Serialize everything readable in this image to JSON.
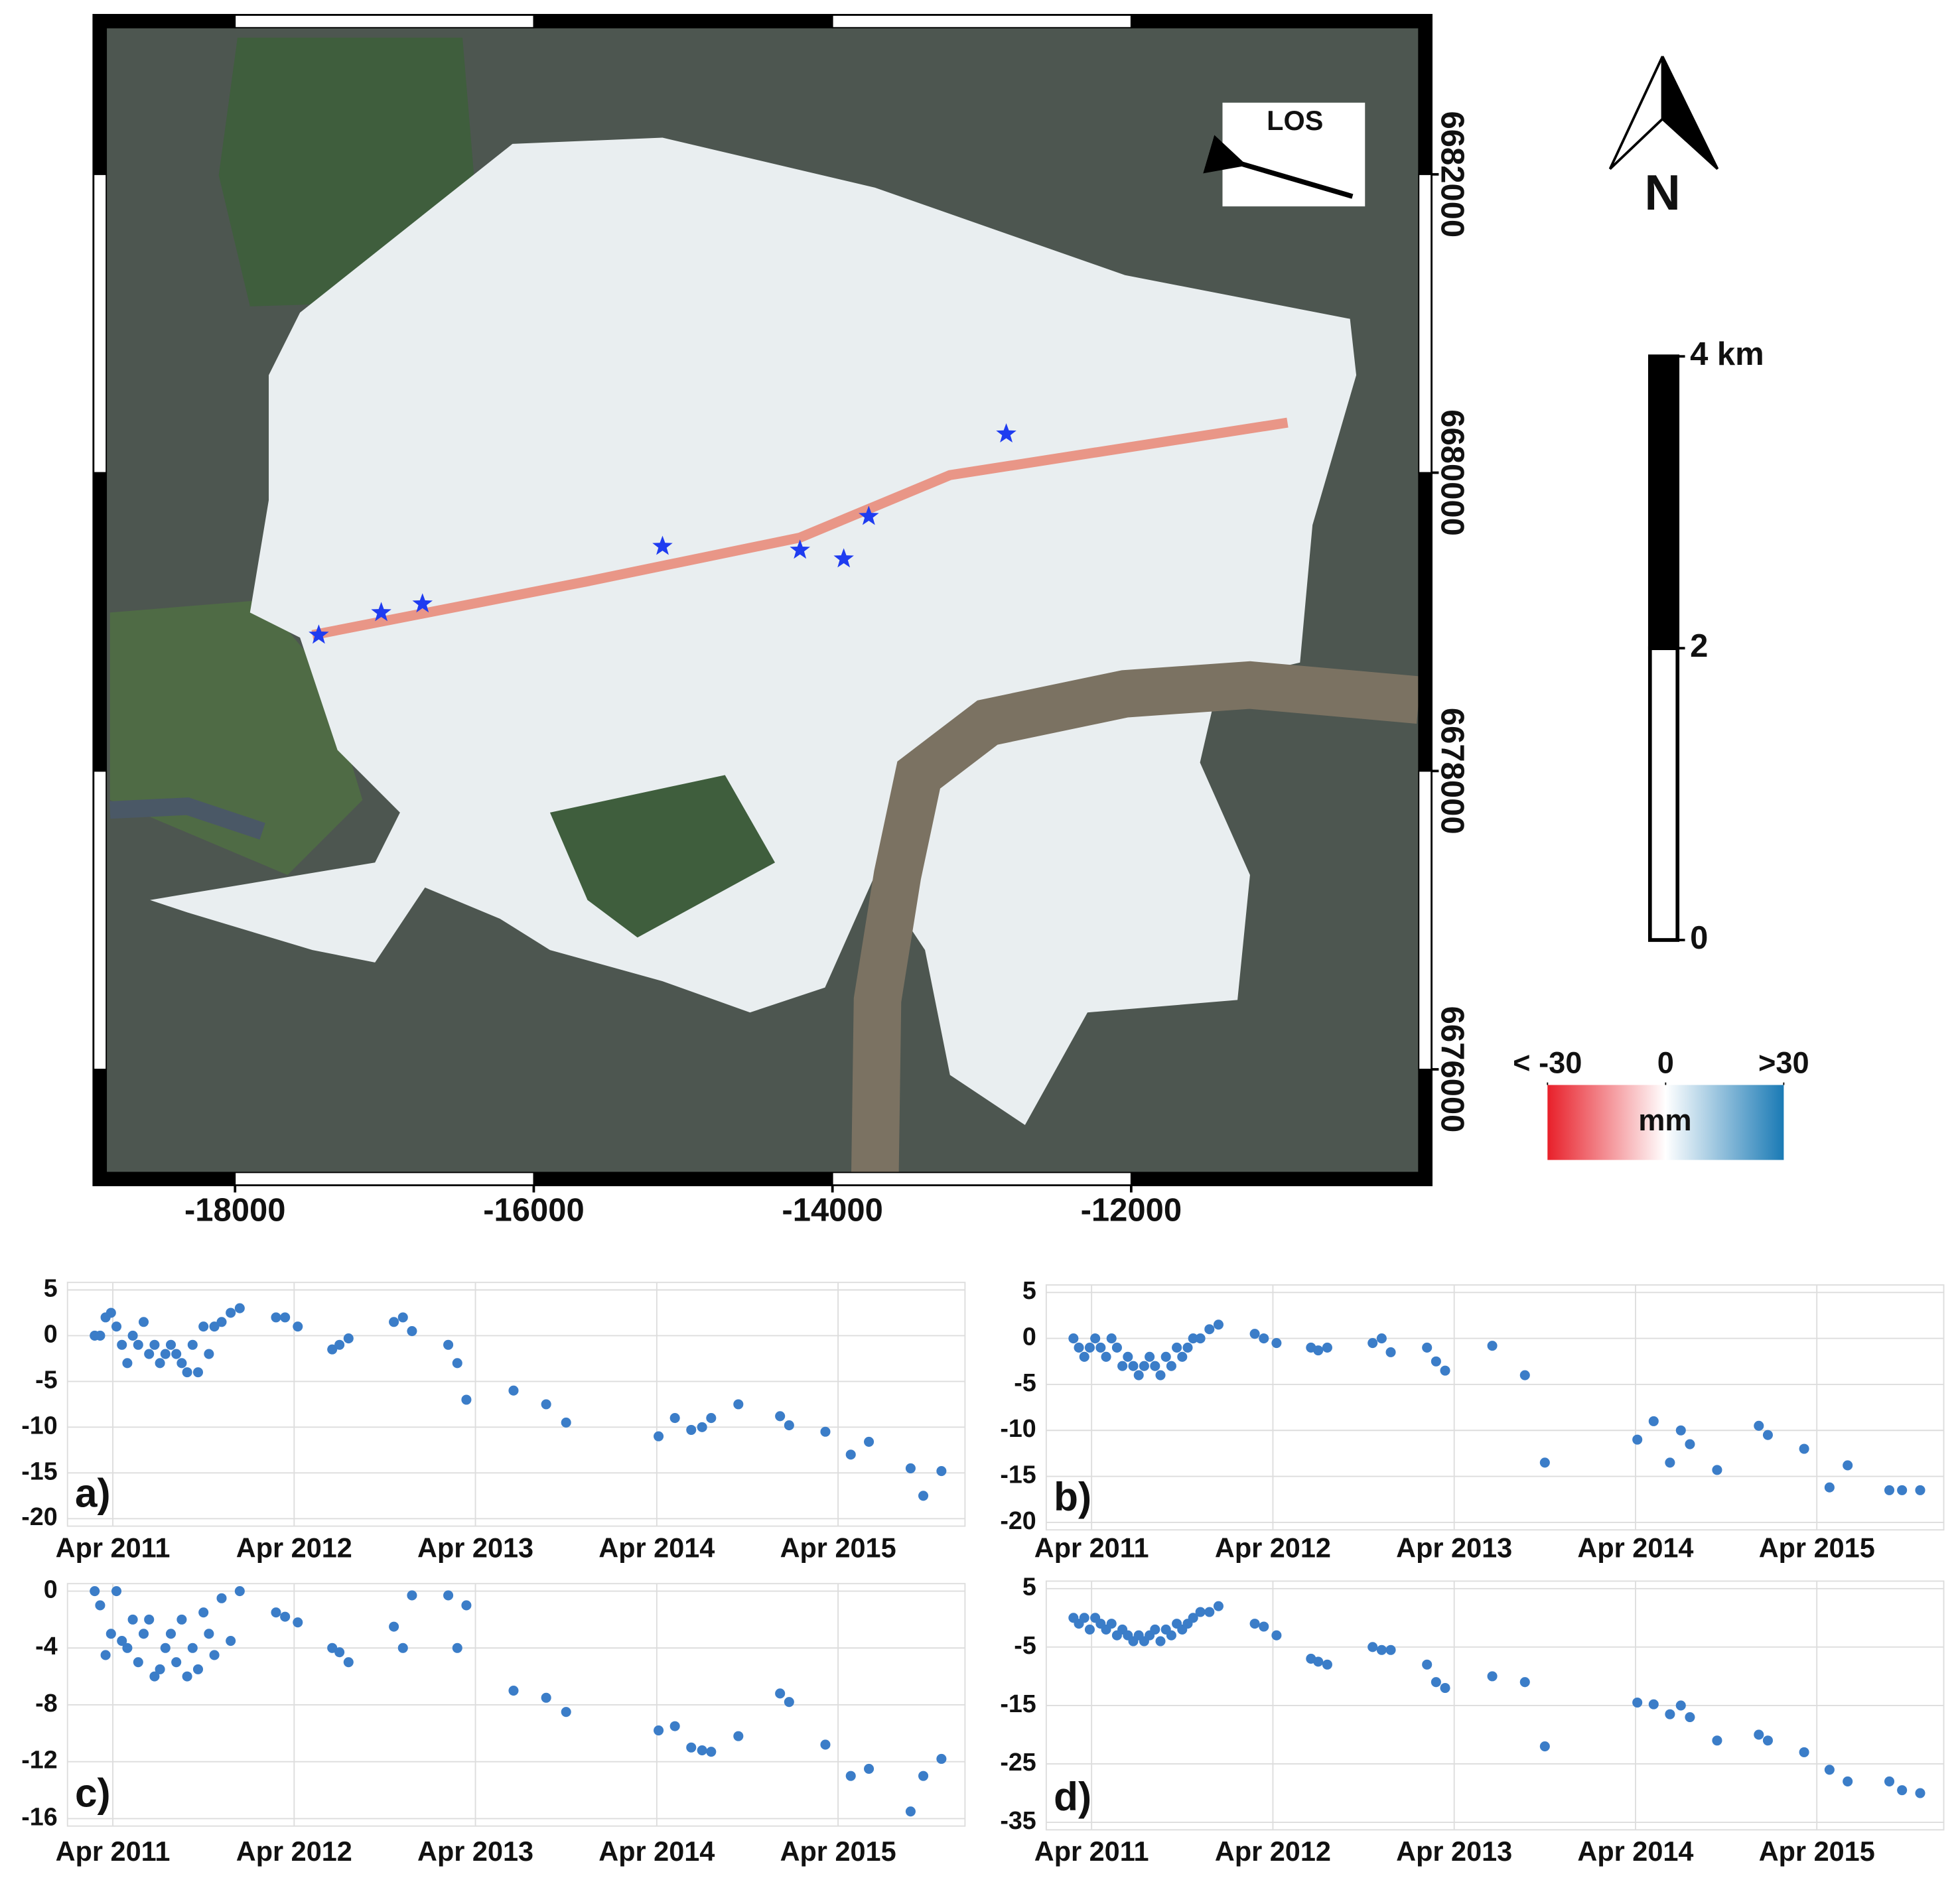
{
  "chart_data": [
    {
      "type": "map",
      "xlim": [
        -18946,
        -9991
      ],
      "ylim": [
        6675225,
        6683067
      ],
      "xticks": [
        -18000,
        -16000,
        -14000,
        -12000
      ],
      "yticks": [
        6676000,
        6678000,
        6680000,
        6682000
      ],
      "direction_label": "LOS",
      "north_label": "N",
      "scale_bar": {
        "lim": [
          0,
          4
        ],
        "ticks": [
          0,
          2,
          {
            "value": 4,
            "label": "4 km"
          }
        ]
      },
      "colorbar": {
        "lim": [
          -30,
          30
        ],
        "ticks": [
          {
            "value": -30,
            "label": "< -30"
          },
          0,
          {
            "value": 30,
            "label": ">30"
          }
        ],
        "label": "mm",
        "colors": [
          "#e8202a",
          "#ffffff",
          "#1a7ab5"
        ]
      }
    },
    {
      "type": "scatter",
      "label": "a)",
      "color": "#3b7dc8",
      "xlim": [
        2011.0,
        2015.95
      ],
      "ylim": [
        -20,
        5
      ],
      "yticks": [
        5,
        0,
        -5,
        -10,
        -15,
        -20
      ],
      "xticks": [
        {
          "value": 2011.25,
          "label": "Apr 2011"
        },
        {
          "value": 2012.25,
          "label": "Apr 2012"
        },
        {
          "value": 2013.25,
          "label": "Apr 2013"
        },
        {
          "value": 2014.25,
          "label": "Apr 2014"
        },
        {
          "value": 2015.25,
          "label": "Apr 2015"
        }
      ],
      "x": [
        2011.15,
        2011.18,
        2011.21,
        2011.24,
        2011.27,
        2011.3,
        2011.33,
        2011.36,
        2011.39,
        2011.42,
        2011.45,
        2011.48,
        2011.51,
        2011.54,
        2011.57,
        2011.6,
        2011.63,
        2011.66,
        2011.69,
        2011.72,
        2011.75,
        2011.78,
        2011.81,
        2011.85,
        2011.9,
        2011.95,
        2012.15,
        2012.2,
        2012.27,
        2012.46,
        2012.5,
        2012.55,
        2012.8,
        2012.85,
        2012.9,
        2013.1,
        2013.15,
        2013.2,
        2013.46,
        2013.64,
        2013.75,
        2014.26,
        2014.35,
        2014.44,
        2014.5,
        2014.55,
        2014.7,
        2014.93,
        2014.98,
        2015.18,
        2015.32,
        2015.42,
        2015.65,
        2015.72,
        2015.82
      ],
      "values": [
        0,
        0,
        2,
        2.5,
        1,
        -1,
        -3,
        0,
        -1,
        1.5,
        -2,
        -1,
        -3,
        -2,
        -1,
        -2,
        -3,
        -4,
        -1,
        -4,
        1,
        -2,
        1,
        1.5,
        2.5,
        3,
        2,
        2,
        1,
        -1.5,
        -1,
        -0.3,
        1.5,
        2,
        0.5,
        -1,
        -3,
        -7,
        -6,
        -7.5,
        -9.5,
        -11,
        -9,
        -10.3,
        -10,
        -9,
        -7.5,
        -8.8,
        -9.8,
        -10.5,
        -13,
        -11.6,
        -14.5,
        -17.5,
        -14.8
      ]
    },
    {
      "type": "scatter",
      "label": "b)",
      "color": "#3b7dc8",
      "xlim": [
        2011.0,
        2015.95
      ],
      "ylim": [
        -20,
        5
      ],
      "yticks": [
        5,
        0,
        -5,
        -10,
        -15,
        -20
      ],
      "xticks": [
        {
          "value": 2011.25,
          "label": "Apr 2011"
        },
        {
          "value": 2012.25,
          "label": "Apr 2012"
        },
        {
          "value": 2013.25,
          "label": "Apr 2013"
        },
        {
          "value": 2014.25,
          "label": "Apr 2014"
        },
        {
          "value": 2015.25,
          "label": "Apr 2015"
        }
      ],
      "x": [
        2011.15,
        2011.18,
        2011.21,
        2011.24,
        2011.27,
        2011.3,
        2011.33,
        2011.36,
        2011.39,
        2011.42,
        2011.45,
        2011.48,
        2011.51,
        2011.54,
        2011.57,
        2011.6,
        2011.63,
        2011.66,
        2011.69,
        2011.72,
        2011.75,
        2011.78,
        2011.81,
        2011.85,
        2011.9,
        2011.95,
        2012.15,
        2012.2,
        2012.27,
        2012.46,
        2012.5,
        2012.55,
        2012.8,
        2012.85,
        2012.9,
        2013.1,
        2013.15,
        2013.2,
        2013.46,
        2013.64,
        2013.75,
        2014.26,
        2014.35,
        2014.44,
        2014.5,
        2014.55,
        2014.7,
        2014.93,
        2014.98,
        2015.18,
        2015.32,
        2015.42,
        2015.65,
        2015.72,
        2015.82
      ],
      "values": [
        0,
        -1,
        -2,
        -1,
        0,
        -1,
        -2,
        0,
        -1,
        -3,
        -2,
        -3,
        -4,
        -3,
        -2,
        -3,
        -4,
        -2,
        -3,
        -1,
        -2,
        -1,
        0,
        0,
        1,
        1.5,
        0.5,
        0,
        -0.5,
        -1,
        -1.3,
        -1,
        -0.5,
        0,
        -1.5,
        -1,
        -2.5,
        -3.5,
        -0.8,
        -4,
        -13.5,
        -11,
        -9,
        -13.5,
        -10,
        -11.5,
        -14.3,
        -9.5,
        -10.5,
        -12,
        -16.2,
        -13.8,
        -16.5,
        -16.5,
        -16.5
      ]
    },
    {
      "type": "scatter",
      "label": "c)",
      "color": "#3b7dc8",
      "xlim": [
        2011.0,
        2015.95
      ],
      "ylim": [
        -16,
        0
      ],
      "yticks": [
        0,
        -4,
        -8,
        -12,
        -16
      ],
      "xticks": [
        {
          "value": 2011.25,
          "label": "Apr 2011"
        },
        {
          "value": 2012.25,
          "label": "Apr 2012"
        },
        {
          "value": 2013.25,
          "label": "Apr 2013"
        },
        {
          "value": 2014.25,
          "label": "Apr 2014"
        },
        {
          "value": 2015.25,
          "label": "Apr 2015"
        }
      ],
      "x": [
        2011.15,
        2011.18,
        2011.21,
        2011.24,
        2011.27,
        2011.3,
        2011.33,
        2011.36,
        2011.39,
        2011.42,
        2011.45,
        2011.48,
        2011.51,
        2011.54,
        2011.57,
        2011.6,
        2011.63,
        2011.66,
        2011.69,
        2011.72,
        2011.75,
        2011.78,
        2011.81,
        2011.85,
        2011.9,
        2011.95,
        2012.15,
        2012.2,
        2012.27,
        2012.46,
        2012.5,
        2012.55,
        2012.8,
        2012.85,
        2012.9,
        2013.1,
        2013.15,
        2013.2,
        2013.46,
        2013.64,
        2013.75,
        2014.26,
        2014.35,
        2014.44,
        2014.5,
        2014.55,
        2014.7,
        2014.93,
        2014.98,
        2015.18,
        2015.32,
        2015.42,
        2015.65,
        2015.72,
        2015.82
      ],
      "values": [
        0,
        -1,
        -4.5,
        -3,
        0,
        -3.5,
        -4,
        -2,
        -5,
        -3,
        -2,
        -6,
        -5.5,
        -4,
        -3,
        -5,
        -2,
        -6,
        -4,
        -5.5,
        -1.5,
        -3,
        -4.5,
        -0.5,
        -3.5,
        0,
        -1.5,
        -1.8,
        -2.2,
        -4,
        -4.3,
        -5,
        -2.5,
        -4,
        -0.3,
        -0.3,
        -4,
        -1,
        -7,
        -7.5,
        -8.5,
        -9.8,
        -9.5,
        -11,
        -11.2,
        -11.3,
        -10.2,
        -7.2,
        -7.8,
        -10.8,
        -13,
        -12.5,
        -15.5,
        -13,
        -11.8
      ]
    },
    {
      "type": "scatter",
      "label": "d)",
      "color": "#3b7dc8",
      "xlim": [
        2011.0,
        2015.95
      ],
      "ylim": [
        -35,
        5
      ],
      "yticks": [
        5,
        -5,
        -15,
        -25,
        -35
      ],
      "xticks": [
        {
          "value": 2011.25,
          "label": "Apr 2011"
        },
        {
          "value": 2012.25,
          "label": "Apr 2012"
        },
        {
          "value": 2013.25,
          "label": "Apr 2013"
        },
        {
          "value": 2014.25,
          "label": "Apr 2014"
        },
        {
          "value": 2015.25,
          "label": "Apr 2015"
        }
      ],
      "x": [
        2011.15,
        2011.18,
        2011.21,
        2011.24,
        2011.27,
        2011.3,
        2011.33,
        2011.36,
        2011.39,
        2011.42,
        2011.45,
        2011.48,
        2011.51,
        2011.54,
        2011.57,
        2011.6,
        2011.63,
        2011.66,
        2011.69,
        2011.72,
        2011.75,
        2011.78,
        2011.81,
        2011.85,
        2011.9,
        2011.95,
        2012.15,
        2012.2,
        2012.27,
        2012.46,
        2012.5,
        2012.55,
        2012.8,
        2012.85,
        2012.9,
        2013.1,
        2013.15,
        2013.2,
        2013.46,
        2013.64,
        2013.75,
        2014.26,
        2014.35,
        2014.44,
        2014.5,
        2014.55,
        2014.7,
        2014.93,
        2014.98,
        2015.18,
        2015.32,
        2015.42,
        2015.65,
        2015.72,
        2015.82
      ],
      "values": [
        0,
        -1,
        0,
        -2,
        0,
        -1,
        -2,
        -1,
        -3,
        -2,
        -3,
        -4,
        -3,
        -4,
        -3,
        -2,
        -4,
        -2,
        -3,
        -1,
        -2,
        -1,
        0,
        1,
        1,
        2,
        -1,
        -1.5,
        -3,
        -7,
        -7.5,
        -8,
        -5,
        -5.5,
        -5.5,
        -8,
        -11,
        -12,
        -10,
        -11,
        -22,
        -14.5,
        -14.8,
        -16.5,
        -15,
        -17,
        -21,
        -20,
        -21,
        -23,
        -26,
        -28,
        -28,
        -29.5,
        -30
      ]
    }
  ]
}
